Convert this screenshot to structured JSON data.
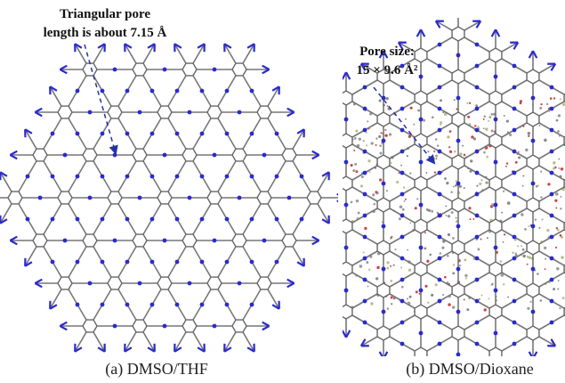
{
  "panels": [
    {
      "annotation": [
        "Triangular pore",
        "length is about 7.15 Å"
      ],
      "caption": "(a) DMSO/THF"
    },
    {
      "annotation": [
        "Pore size:",
        "15 × 9.6 Å²"
      ],
      "caption": "(b) DMSO/Dioxane"
    }
  ]
}
